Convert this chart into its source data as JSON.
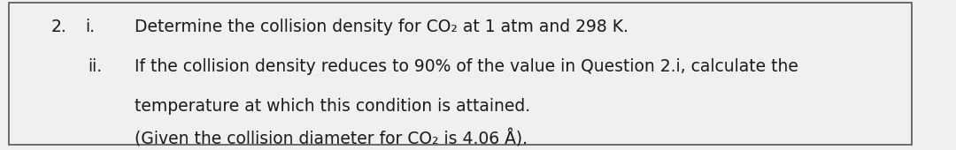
{
  "background_color": "#f0f0f0",
  "border_color": "#555555",
  "number_label": "2.",
  "sub_i": "i.",
  "sub_ii": "ii.",
  "line1": "Determine the collision density for CO₂ at 1 atm and 298 K.",
  "line2": "If the collision density reduces to 90% of the value in Question 2.i, calculate the",
  "line3": "temperature at which this condition is attained.",
  "line4": "(Given the collision diameter for CO₂ is 4.06 Å).",
  "font_size": 13.5,
  "font_family": "DejaVu Sans",
  "text_color": "#1a1a1a"
}
